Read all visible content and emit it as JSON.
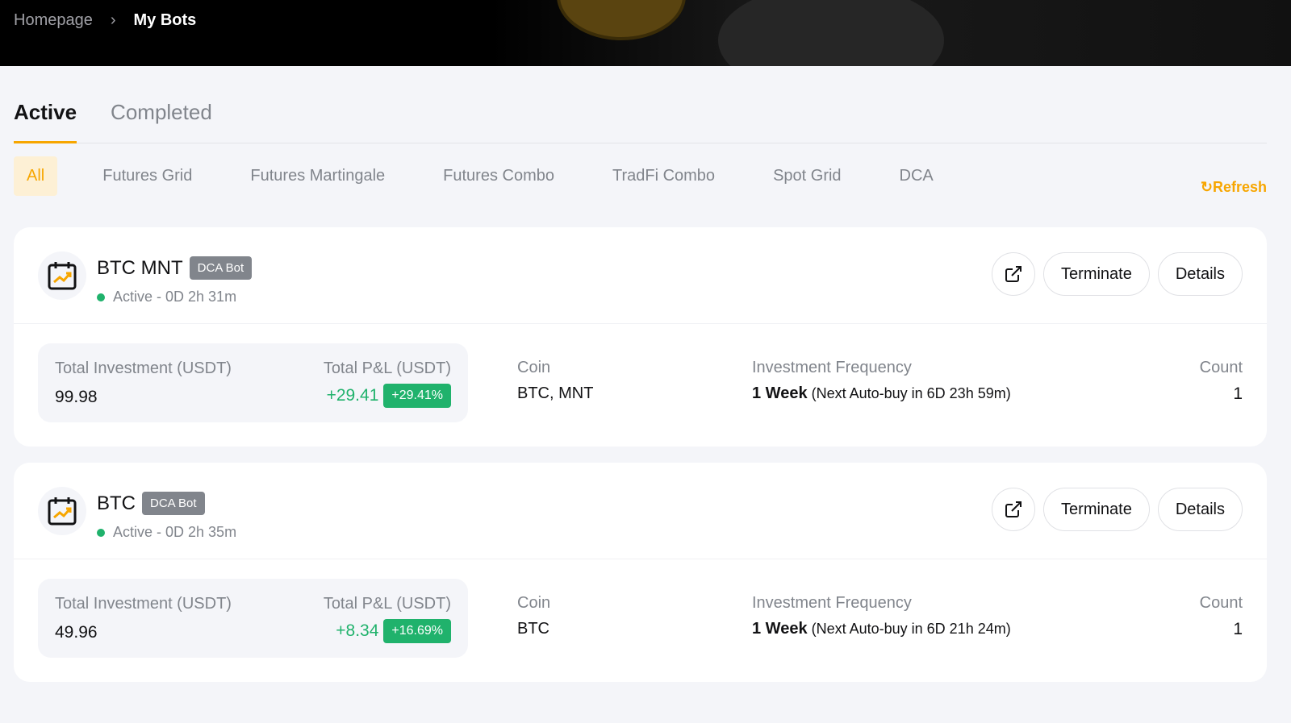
{
  "breadcrumb": {
    "home": "Homepage",
    "current": "My Bots"
  },
  "tabs": [
    {
      "label": "Active"
    },
    {
      "label": "Completed"
    }
  ],
  "filters": [
    "All",
    "Futures Grid",
    "Futures Martingale",
    "Futures Combo",
    "TradFi Combo",
    "Spot Grid",
    "DCA"
  ],
  "refresh": "Refresh",
  "labels": {
    "total_investment": "Total Investment (USDT)",
    "total_pnl": "Total P&L (USDT)",
    "coin": "Coin",
    "frequency": "Investment Frequency",
    "count": "Count",
    "terminate": "Terminate",
    "details": "Details"
  },
  "bots": [
    {
      "name": "BTC MNT",
      "type": "DCA Bot",
      "status": "Active - 0D 2h 31m",
      "investment": "99.98",
      "pnl": "+29.41",
      "pnl_pct": "+29.41%",
      "coin": "BTC, MNT",
      "frequency": "1 Week",
      "next": "(Next Auto-buy in 6D 23h 59m)",
      "count": "1"
    },
    {
      "name": "BTC",
      "type": "DCA Bot",
      "status": "Active - 0D 2h 35m",
      "investment": "49.96",
      "pnl": "+8.34",
      "pnl_pct": "+16.69%",
      "coin": "BTC",
      "frequency": "1 Week",
      "next": "(Next Auto-buy in 6D 21h 24m)",
      "count": "1"
    }
  ],
  "colors": {
    "accent": "#f7a600",
    "positive": "#20b26c"
  }
}
